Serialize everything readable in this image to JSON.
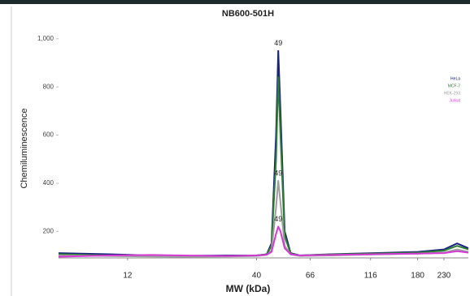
{
  "chart_data": {
    "type": "line",
    "title": "NB600-501H",
    "xlabel": "MW (kDa)",
    "ylabel": "Chemiluminescence",
    "log_x": true,
    "xlim": [
      6.3,
      289
    ],
    "ylim": [
      90,
      1060
    ],
    "xticks": [
      12,
      40,
      66,
      116,
      180,
      230
    ],
    "yticks": [
      {
        "value": 1000,
        "label": "1,000"
      },
      800,
      600,
      400,
      200
    ],
    "x": [
      6.3,
      10,
      15,
      20,
      30,
      40,
      44,
      46,
      48,
      49,
      50,
      52,
      55,
      60,
      80,
      120,
      180,
      230,
      260,
      289
    ],
    "series": [
      {
        "name": "HeLa",
        "color": "#1a237e",
        "values": [
          110,
          105,
          100,
          98,
          100,
          100,
          105,
          150,
          600,
          950,
          700,
          200,
          110,
          100,
          105,
          110,
          115,
          125,
          150,
          130
        ]
      },
      {
        "name": "MCF-7",
        "color": "#2e7d32",
        "values": [
          105,
          100,
          98,
          96,
          98,
          100,
          104,
          140,
          500,
          840,
          600,
          180,
          108,
          100,
          104,
          108,
          112,
          120,
          140,
          125
        ]
      },
      {
        "name": "HEK-293",
        "color": "#9e9e9e",
        "values": [
          100,
          98,
          96,
          95,
          96,
          98,
          102,
          120,
          300,
          410,
          320,
          140,
          104,
          98,
          100,
          104,
          108,
          112,
          125,
          115
        ]
      },
      {
        "name": "Jurkat",
        "color": "#d63ad6",
        "values": [
          95,
          100,
          102,
          100,
          98,
          100,
          103,
          115,
          190,
          220,
          200,
          130,
          105,
          100,
          102,
          105,
          108,
          110,
          118,
          112
        ]
      }
    ],
    "annotations": [
      {
        "x": 49,
        "y": 950
      },
      {
        "x": 49,
        "y": 410
      },
      {
        "x": 49,
        "y": 220
      }
    ],
    "legend": "upper-right"
  }
}
